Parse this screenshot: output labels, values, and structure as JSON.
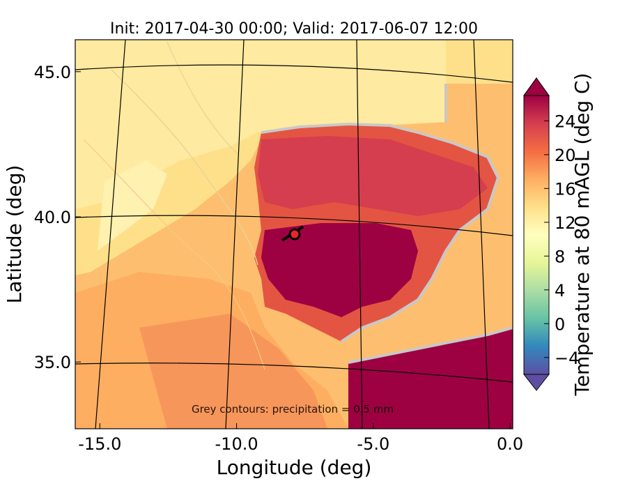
{
  "chart_data": {
    "type": "heatmap",
    "title": "Init: 2017-04-30 00:00; Valid: 2017-06-07 12:00",
    "xlabel": "Longitude (deg)",
    "ylabel": "Latitude (deg)",
    "x_ticks": [
      "-15.0",
      "-10.0",
      "-5.0",
      "0.0"
    ],
    "y_ticks": [
      "45.0",
      "40.0",
      "35.0"
    ],
    "x_tick_values": [
      -15,
      -10,
      -5,
      0
    ],
    "y_tick_values": [
      45,
      40,
      35
    ],
    "xlim": [
      -15.9,
      0.1
    ],
    "ylim": [
      32.7,
      46.1
    ],
    "annotation": "Grey contours: precipitation = 0.5 mm",
    "marker": {
      "lon": -7.7,
      "lat": 39.3
    },
    "colorbar": {
      "label": "Temperature at 80 mAGL (deg C)",
      "ticks": [
        "−4",
        "0",
        "4",
        "8",
        "12",
        "16",
        "20",
        "24"
      ],
      "tick_values": [
        -4,
        0,
        4,
        8,
        12,
        16,
        20,
        24
      ],
      "range": [
        -6,
        27
      ],
      "extend": "both",
      "colormap": [
        "#5e4fa2",
        "#3288bd",
        "#66c2a5",
        "#abdda4",
        "#e6f598",
        "#ffffbf",
        "#fee08b",
        "#fdae61",
        "#f46d43",
        "#d53e4f",
        "#9e0142"
      ]
    },
    "grid": true
  }
}
